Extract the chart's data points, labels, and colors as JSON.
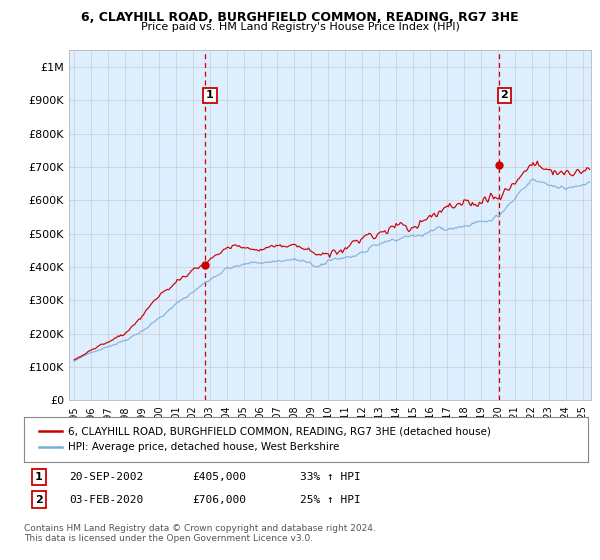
{
  "title_line1": "6, CLAYHILL ROAD, BURGHFIELD COMMON, READING, RG7 3HE",
  "title_line2": "Price paid vs. HM Land Registry's House Price Index (HPI)",
  "ytick_vals": [
    0,
    100000,
    200000,
    300000,
    400000,
    500000,
    600000,
    700000,
    800000,
    900000,
    1000000
  ],
  "ylim": [
    0,
    1050000
  ],
  "xlim_start": 1994.7,
  "xlim_end": 2025.5,
  "hpi_color": "#7aadd4",
  "price_color": "#cc0000",
  "vline_color": "#cc0000",
  "chart_bg_color": "#ddeeff",
  "point1_date_num": 2002.72,
  "point1_price": 405000,
  "point2_date_num": 2020.09,
  "point2_price": 706000,
  "legend_label1": "6, CLAYHILL ROAD, BURGHFIELD COMMON, READING, RG7 3HE (detached house)",
  "legend_label2": "HPI: Average price, detached house, West Berkshire",
  "annotation1_label": "1",
  "annotation2_label": "2",
  "table_row1": [
    "1",
    "20-SEP-2002",
    "£405,000",
    "33% ↑ HPI"
  ],
  "table_row2": [
    "2",
    "03-FEB-2020",
    "£706,000",
    "25% ↑ HPI"
  ],
  "footer": "Contains HM Land Registry data © Crown copyright and database right 2024.\nThis data is licensed under the Open Government Licence v3.0.",
  "background_color": "#ffffff",
  "grid_color": "#cccccc"
}
